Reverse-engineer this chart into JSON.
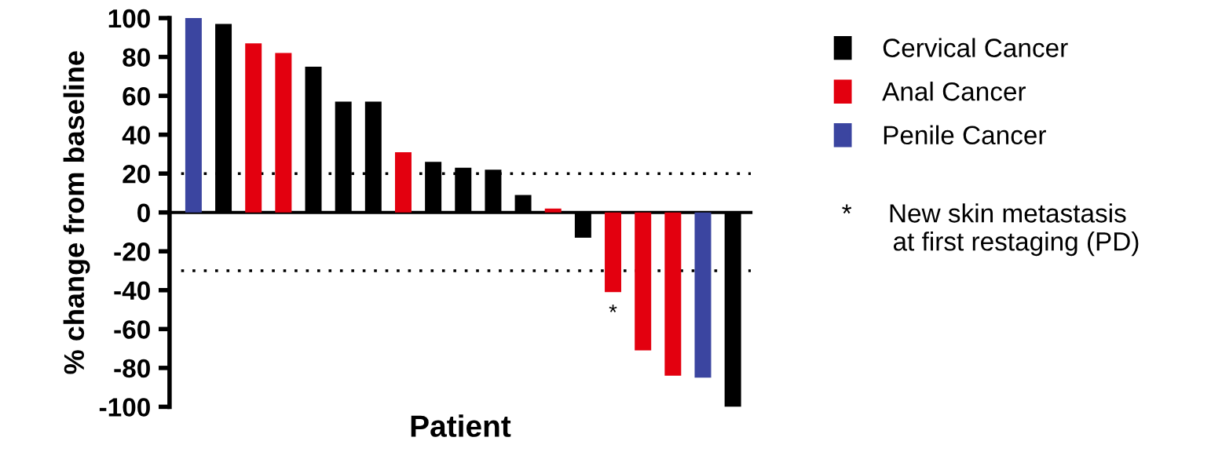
{
  "chart_data": {
    "type": "bar",
    "xlabel": "Patient",
    "ylabel": "% change from baseline",
    "categories": [
      null,
      null,
      null,
      null,
      null,
      null,
      null,
      null,
      null,
      null,
      null,
      null,
      null,
      null,
      null,
      null,
      null,
      null,
      null
    ],
    "series": [
      {
        "name": "Cervical Cancer",
        "color": "#000000",
        "values": [
          null,
          97,
          null,
          null,
          75,
          57,
          57,
          null,
          26,
          23,
          22,
          9,
          null,
          -13,
          null,
          null,
          null,
          null,
          -100
        ]
      },
      {
        "name": "Anal Cancer",
        "color": "#e3000f",
        "values": [
          null,
          null,
          87,
          82,
          null,
          null,
          null,
          31,
          null,
          null,
          null,
          null,
          2,
          null,
          -41,
          -71,
          -84,
          null,
          null
        ],
        "value_labels": [
          null,
          null,
          null,
          null,
          null,
          null,
          null,
          null,
          null,
          null,
          null,
          null,
          null,
          null,
          "*",
          null,
          null,
          null,
          null
        ]
      },
      {
        "name": "Penile Cancer",
        "color": "#3b45a0",
        "values": [
          100,
          null,
          null,
          null,
          null,
          null,
          null,
          null,
          null,
          null,
          null,
          null,
          null,
          null,
          null,
          null,
          null,
          -85,
          null
        ]
      }
    ],
    "ylim": [
      -100,
      100
    ],
    "yticks": [
      -100,
      -80,
      -60,
      -40,
      -20,
      0,
      20,
      40,
      60,
      80,
      100
    ],
    "ref_lines": [
      {
        "axis": "y",
        "value": 20,
        "line_style": "dotted"
      },
      {
        "axis": "y",
        "value": -30,
        "line_style": "dotted"
      }
    ],
    "legend": "right",
    "grid": false,
    "annotations": [
      "*     New skin metastasis\n       at first restaging (PD)"
    ]
  }
}
